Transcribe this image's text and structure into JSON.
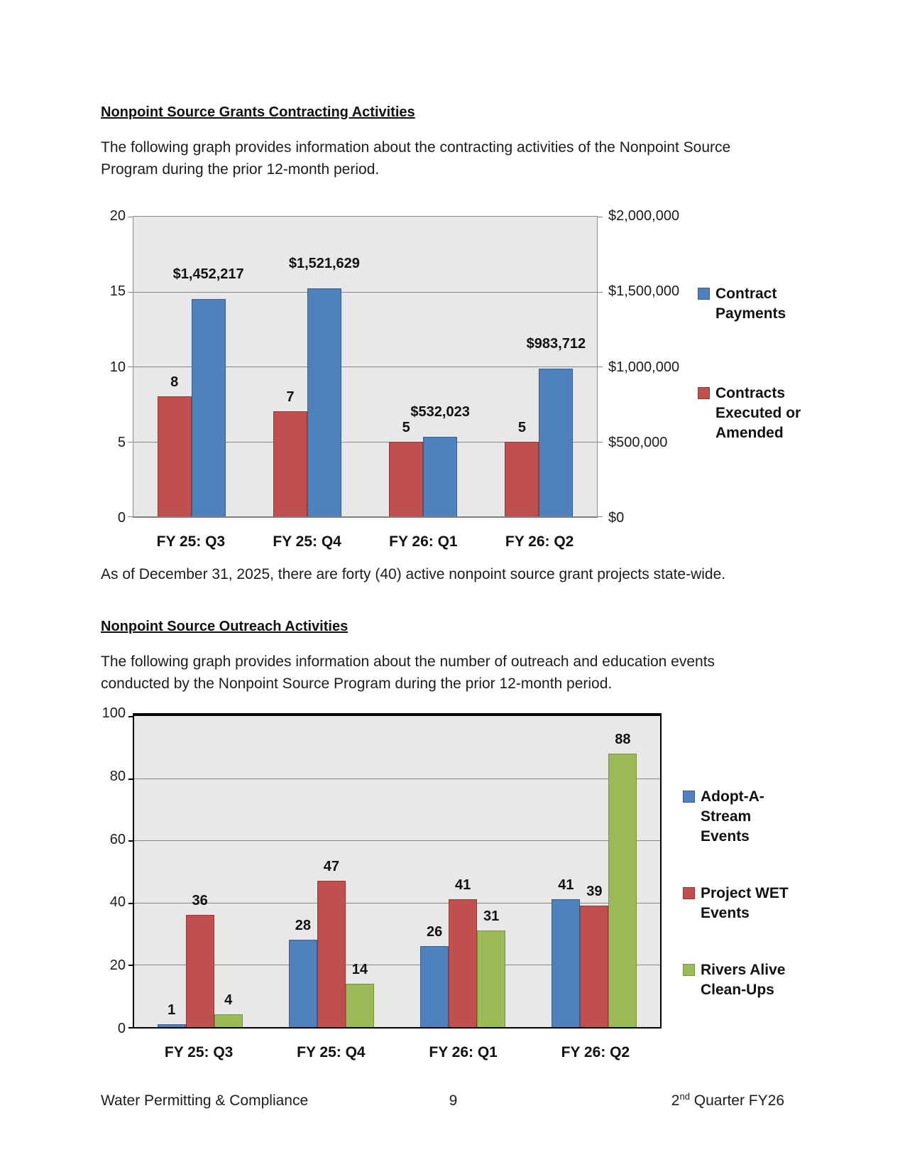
{
  "section1": {
    "heading": "Nonpoint Source Grants Contracting Activities",
    "paragraph": "The following graph provides information about the contracting activities of the Nonpoint Source\nProgram during the prior 12-month period.",
    "note": "As of December 31, 2025, there are forty (40) active nonpoint source grant projects state-wide."
  },
  "section2": {
    "heading": "Nonpoint Source Outreach Activities",
    "paragraph": "The following graph provides information about the number of outreach and education events\nconducted by the Nonpoint Source Program during the prior 12-month period."
  },
  "footer": {
    "left": "Water Permitting & Compliance",
    "page_number": "9",
    "right_prefix": "2",
    "right_sup": "nd",
    "right_suffix": " Quarter FY26"
  },
  "colors": {
    "blue": "#4F81BD",
    "red": "#C0504D",
    "green": "#9BBB59",
    "plot_background": "#E8E8E8",
    "gridline": "#878787"
  },
  "chart_data": [
    {
      "type": "bar",
      "categories": [
        "FY 25: Q3",
        "FY 25: Q4",
        "FY 26: Q1",
        "FY 26: Q2"
      ],
      "series": [
        {
          "name": "Contracts Executed or Amended",
          "axis": "left",
          "color": "#C0504D",
          "border": "#953734",
          "values": [
            8,
            7,
            5,
            5
          ],
          "data_labels": [
            "8",
            "7",
            "5",
            "5"
          ]
        },
        {
          "name": "Contract Payments",
          "axis": "right",
          "color": "#4F81BD",
          "border": "#385D8A",
          "values": [
            1452217,
            1521629,
            532023,
            983712
          ],
          "data_labels": [
            "$1,452,217",
            "$1,521,629",
            "$532,023",
            "$983,712"
          ]
        }
      ],
      "left_axis": {
        "min": 0,
        "max": 20,
        "tick_values": [
          20,
          15,
          10,
          5,
          0
        ],
        "tick_labels": [
          "20",
          "15",
          "10",
          "5",
          "0"
        ]
      },
      "right_axis": {
        "min": 0,
        "max": 2000000,
        "tick_values": [
          2000000,
          1500000,
          1000000,
          500000,
          0
        ],
        "tick_labels": [
          "$2,000,000",
          "$1,500,000",
          "$1,000,000",
          "$500,000",
          "$0"
        ]
      },
      "grid": true,
      "legend_position": "right",
      "legend": [
        {
          "label": "Contract\nPayments",
          "color": "#4F81BD",
          "border": "#385D8A"
        },
        {
          "label": "Contracts\nExecuted or\nAmended",
          "color": "#C0504D",
          "border": "#953734"
        }
      ]
    },
    {
      "type": "bar",
      "categories": [
        "FY 25: Q3",
        "FY 25: Q4",
        "FY 26: Q1",
        "FY 26: Q2"
      ],
      "series": [
        {
          "name": "Adopt-A-Stream Events",
          "axis": "left",
          "color": "#4F81BD",
          "border": "#385D8A",
          "values": [
            1,
            28,
            26,
            41
          ],
          "data_labels": [
            "1",
            "28",
            "26",
            "41"
          ]
        },
        {
          "name": "Project WET Events",
          "axis": "left",
          "color": "#C0504D",
          "border": "#953734",
          "values": [
            36,
            47,
            41,
            39
          ],
          "data_labels": [
            "36",
            "47",
            "41",
            "39"
          ]
        },
        {
          "name": "Rivers Alive Clean-Ups",
          "axis": "left",
          "color": "#9BBB59",
          "border": "#76923C",
          "values": [
            4,
            14,
            31,
            88
          ],
          "data_labels": [
            "4",
            "14",
            "31",
            "88"
          ]
        }
      ],
      "left_axis": {
        "min": 0,
        "max": 100,
        "tick_values": [
          100,
          80,
          60,
          40,
          20,
          0
        ],
        "tick_labels": [
          "100",
          "80",
          "60",
          "40",
          "20",
          "0"
        ]
      },
      "grid": true,
      "legend_position": "right",
      "legend": [
        {
          "label": "Adopt-A-Stream\nEvents",
          "color": "#4F81BD",
          "border": "#385D8A"
        },
        {
          "label": "Project WET\nEvents",
          "color": "#C0504D",
          "border": "#953734"
        },
        {
          "label": "Rivers Alive\nClean-Ups",
          "color": "#9BBB59",
          "border": "#76923C"
        }
      ]
    }
  ]
}
